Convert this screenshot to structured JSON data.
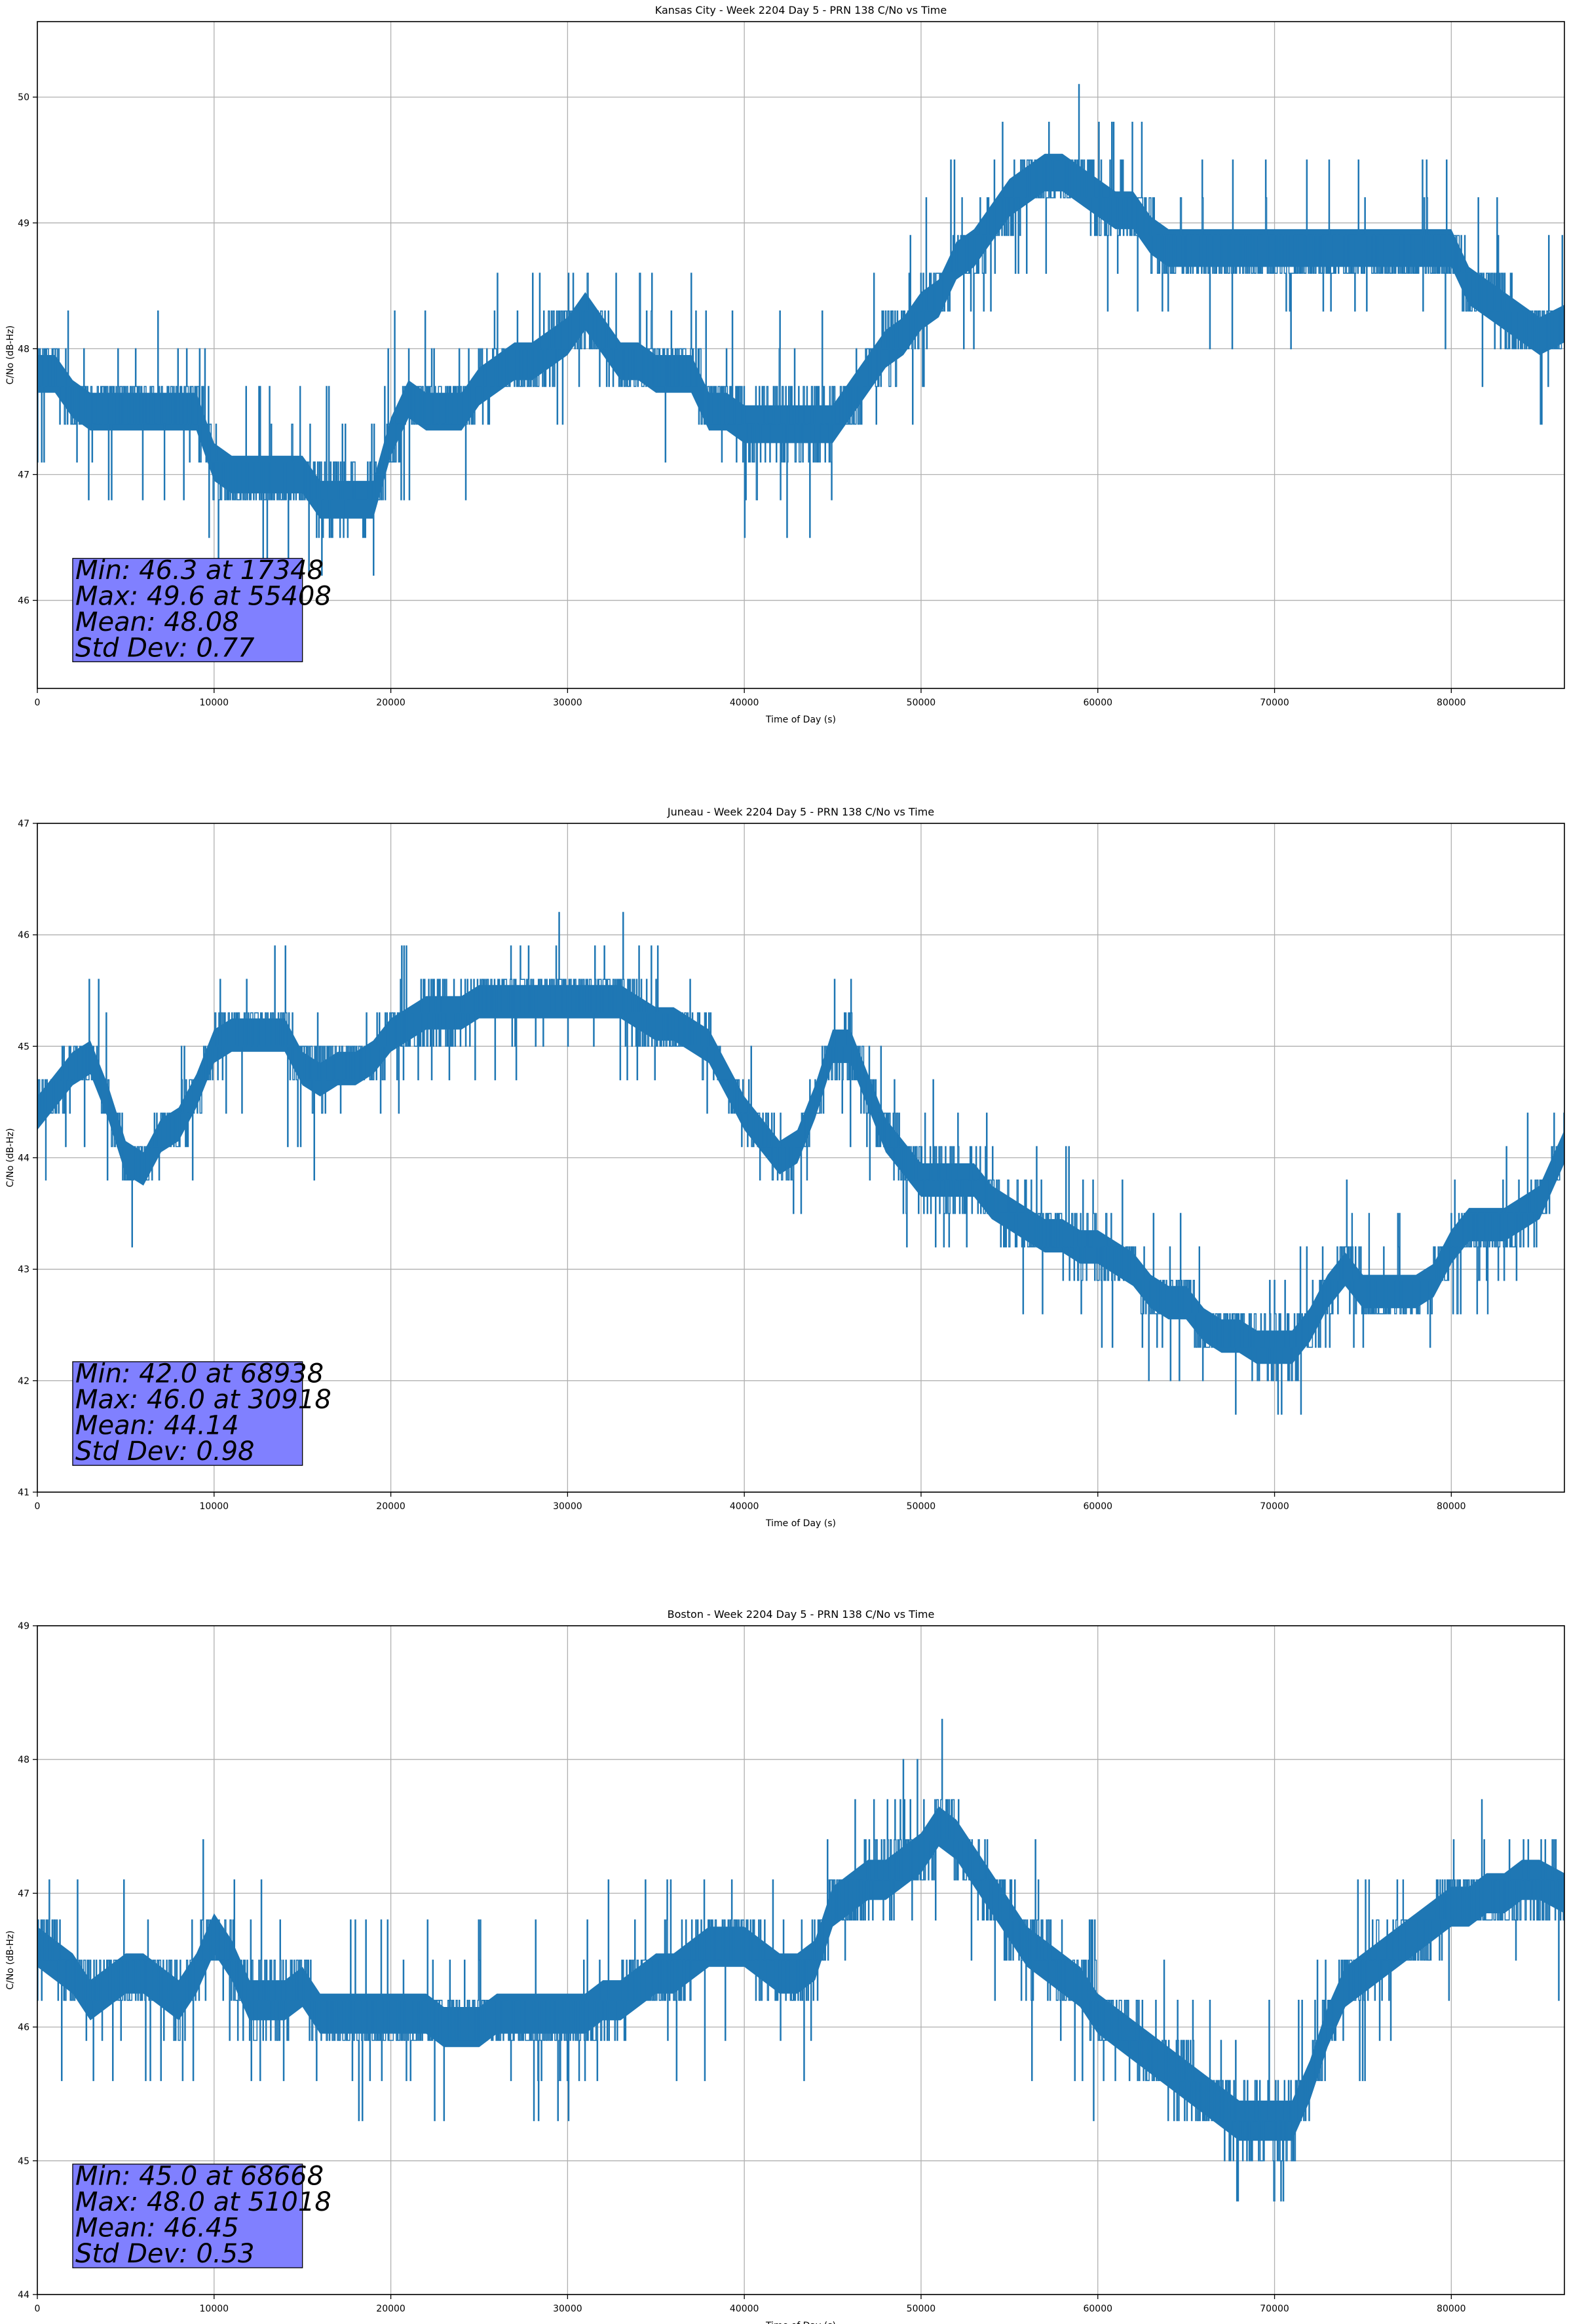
{
  "figure": {
    "style": {
      "series_color": "#1f77b4",
      "stats_box_color": "#8080ff",
      "stats_box_edge": "#000000",
      "grid_color": "#b0b0b0",
      "background": "#ffffff"
    }
  },
  "chart_data": [
    {
      "type": "line",
      "title": "Kansas City - Week 2204 Day 5 - PRN 138 C/No vs Time",
      "xlabel": "Time of Day (s)",
      "ylabel": "C/No (dB-Hz)",
      "xlim": [
        0,
        86400
      ],
      "ylim": [
        45.3,
        50.6
      ],
      "xticks": [
        0,
        10000,
        20000,
        30000,
        40000,
        50000,
        60000,
        70000,
        80000
      ],
      "yticks": [
        46,
        47,
        48,
        49,
        50
      ],
      "grid": true,
      "step": 0.3,
      "stats": [
        "Min: 46.3 at 17348",
        "Max: 49.6 at 55408",
        "Mean: 48.08",
        "Std Dev: 0.77"
      ],
      "stats_placement": "lower-left",
      "series": [
        {
          "x": [
            0,
            1000,
            2000,
            3000,
            4000,
            5000,
            6000,
            7000,
            8000,
            9000,
            10000,
            11000,
            12000,
            13000,
            14000,
            15000,
            16000,
            17000,
            18000,
            19000,
            20000,
            21000,
            22000,
            23000,
            24000,
            25000,
            26000,
            27000,
            28000,
            29000,
            30000,
            31000,
            32000,
            33000,
            34000,
            35000,
            36000,
            37000,
            38000,
            39000,
            40000,
            41000,
            42000,
            43000,
            44000,
            45000,
            46000,
            47000,
            48000,
            49000,
            50000,
            51000,
            52000,
            53000,
            54000,
            55000,
            56000,
            57000,
            58000,
            59000,
            60000,
            61000,
            62000,
            63000,
            64000,
            65000,
            66000,
            67000,
            68000,
            69000,
            70000,
            71000,
            72000,
            73000,
            74000,
            75000,
            76000,
            77000,
            78000,
            79000,
            80000,
            81000,
            82000,
            83000,
            84000,
            85000,
            86400
          ],
          "y": [
            47.8,
            47.8,
            47.6,
            47.5,
            47.5,
            47.5,
            47.5,
            47.5,
            47.5,
            47.5,
            47.1,
            47.0,
            47.0,
            47.0,
            47.0,
            47.0,
            46.8,
            46.8,
            46.8,
            46.8,
            47.3,
            47.6,
            47.5,
            47.5,
            47.5,
            47.7,
            47.8,
            47.9,
            47.9,
            48.0,
            48.1,
            48.3,
            48.1,
            47.9,
            47.9,
            47.8,
            47.8,
            47.8,
            47.5,
            47.5,
            47.4,
            47.4,
            47.4,
            47.4,
            47.4,
            47.4,
            47.6,
            47.8,
            48.0,
            48.1,
            48.3,
            48.4,
            48.7,
            48.8,
            49.0,
            49.2,
            49.3,
            49.4,
            49.4,
            49.3,
            49.2,
            49.1,
            49.1,
            48.9,
            48.8,
            48.8,
            48.8,
            48.8,
            48.8,
            48.8,
            48.8,
            48.8,
            48.8,
            48.8,
            48.8,
            48.8,
            48.8,
            48.8,
            48.8,
            48.8,
            48.8,
            48.5,
            48.4,
            48.3,
            48.2,
            48.1,
            48.2
          ],
          "band": [
            0.3,
            0.3,
            0.3,
            0.3,
            0.3,
            0.3,
            0.3,
            0.3,
            0.3,
            0.3,
            0.3,
            0.3,
            0.3,
            0.3,
            0.3,
            0.3,
            0.3,
            0.3,
            0.3,
            0.3,
            0.3,
            0.3,
            0.3,
            0.3,
            0.3,
            0.3,
            0.3,
            0.3,
            0.3,
            0.3,
            0.3,
            0.3,
            0.3,
            0.3,
            0.3,
            0.3,
            0.3,
            0.3,
            0.3,
            0.3,
            0.3,
            0.3,
            0.3,
            0.3,
            0.3,
            0.3,
            0.3,
            0.3,
            0.3,
            0.3,
            0.3,
            0.3,
            0.3,
            0.3,
            0.3,
            0.3,
            0.3,
            0.3,
            0.3,
            0.3,
            0.3,
            0.3,
            0.3,
            0.3,
            0.3,
            0.3,
            0.3,
            0.3,
            0.3,
            0.3,
            0.3,
            0.3,
            0.3,
            0.3,
            0.3,
            0.3,
            0.3,
            0.3,
            0.3,
            0.3,
            0.3,
            0.3,
            0.3,
            0.3,
            0.3,
            0.3,
            0.3
          ]
        }
      ]
    },
    {
      "type": "line",
      "title": "Juneau - Week 2204 Day 5 - PRN 138 C/No vs Time",
      "xlabel": "Time of Day (s)",
      "ylabel": "C/No (dB-Hz)",
      "xlim": [
        0,
        86400
      ],
      "ylim": [
        41,
        47
      ],
      "xticks": [
        0,
        10000,
        20000,
        30000,
        40000,
        50000,
        60000,
        70000,
        80000
      ],
      "yticks": [
        41,
        42,
        43,
        44,
        45,
        46,
        47
      ],
      "grid": true,
      "step": 0.3,
      "stats": [
        "Min: 42.0 at 68938",
        "Max: 46.0 at 30918",
        "Mean: 44.14",
        "Std Dev: 0.98"
      ],
      "stats_placement": "lower-left",
      "series": [
        {
          "x": [
            0,
            1000,
            2000,
            3000,
            4000,
            5000,
            6000,
            7000,
            8000,
            9000,
            10000,
            11000,
            12000,
            13000,
            14000,
            15000,
            16000,
            17000,
            18000,
            19000,
            20000,
            21000,
            22000,
            23000,
            24000,
            25000,
            26000,
            27000,
            28000,
            29000,
            30000,
            31000,
            32000,
            33000,
            34000,
            35000,
            36000,
            37000,
            38000,
            39000,
            40000,
            41000,
            42000,
            43000,
            44000,
            45000,
            46000,
            47000,
            48000,
            49000,
            50000,
            51000,
            52000,
            53000,
            54000,
            55000,
            56000,
            57000,
            58000,
            59000,
            60000,
            61000,
            62000,
            63000,
            64000,
            65000,
            66000,
            67000,
            68000,
            69000,
            70000,
            71000,
            72000,
            73000,
            74000,
            75000,
            76000,
            77000,
            78000,
            79000,
            80000,
            81000,
            82000,
            83000,
            84000,
            85000,
            86400
          ],
          "y": [
            44.4,
            44.6,
            44.8,
            44.9,
            44.5,
            44.0,
            43.9,
            44.2,
            44.3,
            44.6,
            45.0,
            45.1,
            45.1,
            45.1,
            45.1,
            44.8,
            44.7,
            44.8,
            44.8,
            44.9,
            45.1,
            45.2,
            45.3,
            45.3,
            45.3,
            45.4,
            45.4,
            45.4,
            45.4,
            45.4,
            45.4,
            45.4,
            45.4,
            45.4,
            45.3,
            45.2,
            45.2,
            45.1,
            45.0,
            44.7,
            44.4,
            44.2,
            44.0,
            44.1,
            44.5,
            45.0,
            45.0,
            44.6,
            44.2,
            44.0,
            43.8,
            43.8,
            43.8,
            43.8,
            43.6,
            43.5,
            43.4,
            43.3,
            43.3,
            43.2,
            43.2,
            43.1,
            43.0,
            42.8,
            42.7,
            42.7,
            42.5,
            42.4,
            42.4,
            42.3,
            42.3,
            42.3,
            42.5,
            42.8,
            43.0,
            42.8,
            42.8,
            42.8,
            42.8,
            42.9,
            43.2,
            43.4,
            43.4,
            43.4,
            43.5,
            43.6,
            44.1
          ],
          "band": [
            0.3,
            0.3,
            0.3,
            0.3,
            0.3,
            0.3,
            0.3,
            0.3,
            0.3,
            0.3,
            0.3,
            0.3,
            0.3,
            0.3,
            0.3,
            0.3,
            0.3,
            0.3,
            0.3,
            0.3,
            0.3,
            0.3,
            0.3,
            0.3,
            0.3,
            0.3,
            0.3,
            0.3,
            0.3,
            0.3,
            0.3,
            0.3,
            0.3,
            0.3,
            0.3,
            0.3,
            0.3,
            0.3,
            0.3,
            0.3,
            0.3,
            0.3,
            0.3,
            0.3,
            0.3,
            0.3,
            0.3,
            0.3,
            0.3,
            0.3,
            0.3,
            0.3,
            0.3,
            0.3,
            0.3,
            0.3,
            0.3,
            0.3,
            0.3,
            0.3,
            0.3,
            0.3,
            0.3,
            0.3,
            0.3,
            0.3,
            0.3,
            0.3,
            0.3,
            0.3,
            0.3,
            0.3,
            0.3,
            0.3,
            0.3,
            0.3,
            0.3,
            0.3,
            0.3,
            0.3,
            0.3,
            0.3,
            0.3,
            0.3,
            0.3,
            0.3,
            0.3
          ]
        }
      ]
    },
    {
      "type": "line",
      "title": "Boston - Week 2204 Day 5 - PRN 138 C/No vs Time",
      "xlabel": "Time of Day (s)",
      "ylabel": "C/No (dB-Hz)",
      "xlim": [
        0,
        86400
      ],
      "ylim": [
        44,
        49
      ],
      "xticks": [
        0,
        10000,
        20000,
        30000,
        40000,
        50000,
        60000,
        70000,
        80000
      ],
      "yticks": [
        44,
        45,
        46,
        47,
        48,
        49
      ],
      "grid": true,
      "step": 0.3,
      "stats": [
        "Min: 45.0 at 68668",
        "Max: 48.0 at 51018",
        "Mean: 46.45",
        "Std Dev: 0.53"
      ],
      "stats_placement": "lower-left",
      "series": [
        {
          "x": [
            0,
            1000,
            2000,
            3000,
            4000,
            5000,
            6000,
            7000,
            8000,
            9000,
            10000,
            11000,
            12000,
            13000,
            14000,
            15000,
            16000,
            17000,
            18000,
            19000,
            20000,
            21000,
            22000,
            23000,
            24000,
            25000,
            26000,
            27000,
            28000,
            29000,
            30000,
            31000,
            32000,
            33000,
            34000,
            35000,
            36000,
            37000,
            38000,
            39000,
            40000,
            41000,
            42000,
            43000,
            44000,
            45000,
            46000,
            47000,
            48000,
            49000,
            50000,
            51000,
            52000,
            53000,
            54000,
            55000,
            56000,
            57000,
            58000,
            59000,
            60000,
            61000,
            62000,
            63000,
            64000,
            65000,
            66000,
            67000,
            68000,
            69000,
            70000,
            71000,
            72000,
            73000,
            74000,
            75000,
            76000,
            77000,
            78000,
            79000,
            80000,
            81000,
            82000,
            83000,
            84000,
            85000,
            86400
          ],
          "y": [
            46.6,
            46.5,
            46.4,
            46.2,
            46.3,
            46.4,
            46.4,
            46.3,
            46.2,
            46.4,
            46.7,
            46.5,
            46.2,
            46.2,
            46.2,
            46.3,
            46.1,
            46.1,
            46.1,
            46.1,
            46.1,
            46.1,
            46.1,
            46.0,
            46.0,
            46.0,
            46.1,
            46.1,
            46.1,
            46.1,
            46.1,
            46.1,
            46.2,
            46.2,
            46.3,
            46.4,
            46.4,
            46.5,
            46.6,
            46.6,
            46.6,
            46.5,
            46.4,
            46.4,
            46.5,
            46.9,
            47.0,
            47.1,
            47.1,
            47.2,
            47.3,
            47.5,
            47.4,
            47.2,
            47.0,
            46.8,
            46.6,
            46.5,
            46.4,
            46.3,
            46.1,
            46.0,
            45.9,
            45.8,
            45.7,
            45.6,
            45.5,
            45.4,
            45.3,
            45.3,
            45.3,
            45.3,
            45.6,
            46.0,
            46.3,
            46.4,
            46.5,
            46.6,
            46.7,
            46.8,
            46.9,
            46.9,
            47.0,
            47.0,
            47.1,
            47.1,
            47.0
          ],
          "band": [
            0.3,
            0.3,
            0.3,
            0.3,
            0.3,
            0.3,
            0.3,
            0.3,
            0.3,
            0.3,
            0.3,
            0.3,
            0.3,
            0.3,
            0.3,
            0.3,
            0.3,
            0.3,
            0.3,
            0.3,
            0.3,
            0.3,
            0.3,
            0.3,
            0.3,
            0.3,
            0.3,
            0.3,
            0.3,
            0.3,
            0.3,
            0.3,
            0.3,
            0.3,
            0.3,
            0.3,
            0.3,
            0.3,
            0.3,
            0.3,
            0.3,
            0.3,
            0.3,
            0.3,
            0.3,
            0.3,
            0.3,
            0.3,
            0.3,
            0.3,
            0.3,
            0.3,
            0.3,
            0.3,
            0.3,
            0.3,
            0.3,
            0.3,
            0.3,
            0.3,
            0.3,
            0.3,
            0.3,
            0.3,
            0.3,
            0.3,
            0.3,
            0.3,
            0.3,
            0.3,
            0.3,
            0.3,
            0.3,
            0.3,
            0.3,
            0.3,
            0.3,
            0.3,
            0.3,
            0.3,
            0.3,
            0.3,
            0.3,
            0.3,
            0.3,
            0.3,
            0.3
          ]
        }
      ]
    }
  ]
}
